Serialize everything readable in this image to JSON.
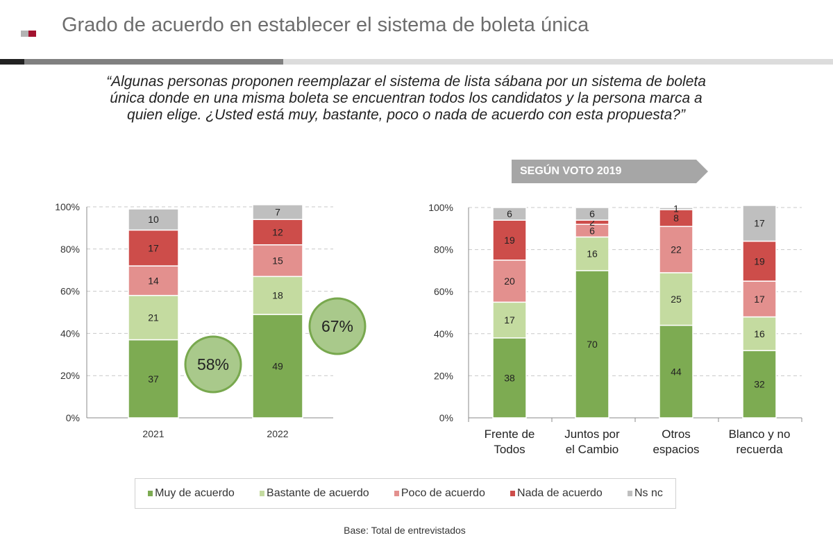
{
  "header": {
    "title": "Grado de acuerdo en establecer el sistema de boleta única"
  },
  "question": "“Algunas personas proponen reemplazar el sistema de lista sábana por un sistema de boleta única donde en una misma boleta se encuentran todos los candidatos y la persona marca a quien elige. ¿Usted está muy, bastante, poco o nada de acuerdo con esta propuesta?”",
  "segment_banner": "SEGÚN VOTO 2019",
  "footer": "Base: Total de entrevistados",
  "colors": {
    "Muy de acuerdo": "#7dab52",
    "Bastante de acuerdo": "#c4dba0",
    "Poco de acuerdo": "#e3908e",
    "Nada de acuerdo": "#cd4d4a",
    "Ns nc": "#bfbfbf",
    "circle_fill": "#a9c98b",
    "circle_border": "#78a84e"
  },
  "chart_data": [
    {
      "type": "bar",
      "stacked": true,
      "categories": [
        "2021",
        "2022"
      ],
      "ylim": [
        0,
        100
      ],
      "yticks": [
        "0%",
        "20%",
        "40%",
        "60%",
        "80%",
        "100%"
      ],
      "grid": true,
      "series": [
        {
          "name": "Muy de acuerdo",
          "values": [
            37,
            49
          ]
        },
        {
          "name": "Bastante de acuerdo",
          "values": [
            21,
            18
          ]
        },
        {
          "name": "Poco de acuerdo",
          "values": [
            14,
            15
          ]
        },
        {
          "name": "Nada de acuerdo",
          "values": [
            17,
            12
          ]
        },
        {
          "name": "Ns nc",
          "values": [
            10,
            7
          ]
        }
      ],
      "annotations": [
        "58%",
        "67%"
      ]
    },
    {
      "type": "bar",
      "stacked": true,
      "categories": [
        "Frente de Todos",
        "Juntos por el Cambio",
        "Otros espacios",
        "Blanco y no recuerda"
      ],
      "ylim": [
        0,
        100
      ],
      "yticks": [
        "0%",
        "20%",
        "40%",
        "60%",
        "80%",
        "100%"
      ],
      "grid": true,
      "series": [
        {
          "name": "Muy de acuerdo",
          "values": [
            38,
            70,
            44,
            32
          ]
        },
        {
          "name": "Bastante de acuerdo",
          "values": [
            17,
            16,
            25,
            16
          ]
        },
        {
          "name": "Poco de acuerdo",
          "values": [
            20,
            6,
            22,
            17
          ]
        },
        {
          "name": "Nada de acuerdo",
          "values": [
            19,
            2,
            8,
            19
          ]
        },
        {
          "name": "Ns nc",
          "values": [
            6,
            6,
            1,
            17
          ]
        }
      ]
    }
  ],
  "legend": {
    "placement": "bottom",
    "items": [
      "Muy de acuerdo",
      "Bastante de acuerdo",
      "Poco de acuerdo",
      "Nada de acuerdo",
      "Ns nc"
    ]
  }
}
